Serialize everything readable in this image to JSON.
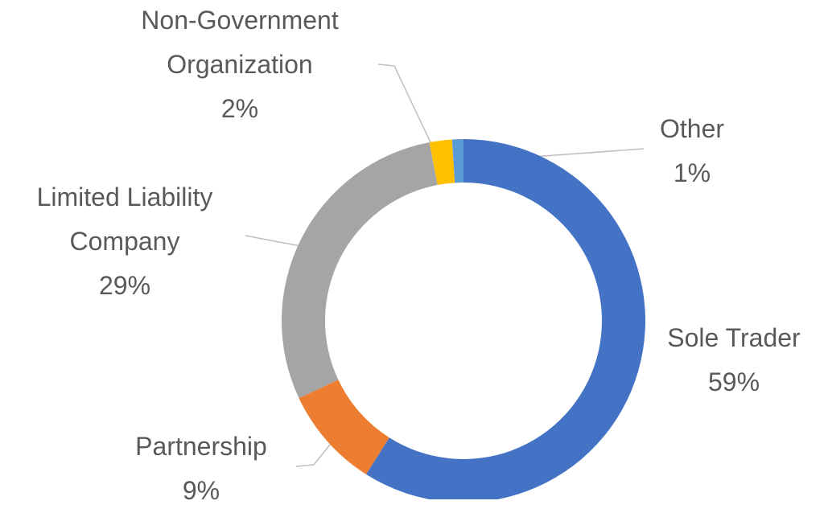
{
  "chart_data": {
    "type": "donut",
    "categories": [
      "Sole Trader",
      "Partnership",
      "Limited Liability Company",
      "Non-Government Organization",
      "Other"
    ],
    "values": [
      59,
      9,
      29,
      2,
      1
    ],
    "value_labels": [
      "59%",
      "9%",
      "29%",
      "2%",
      "1%"
    ],
    "colors": [
      "#4472c4",
      "#ed7d31",
      "#a5a5a5",
      "#ffc000",
      "#5b9bd5"
    ]
  }
}
